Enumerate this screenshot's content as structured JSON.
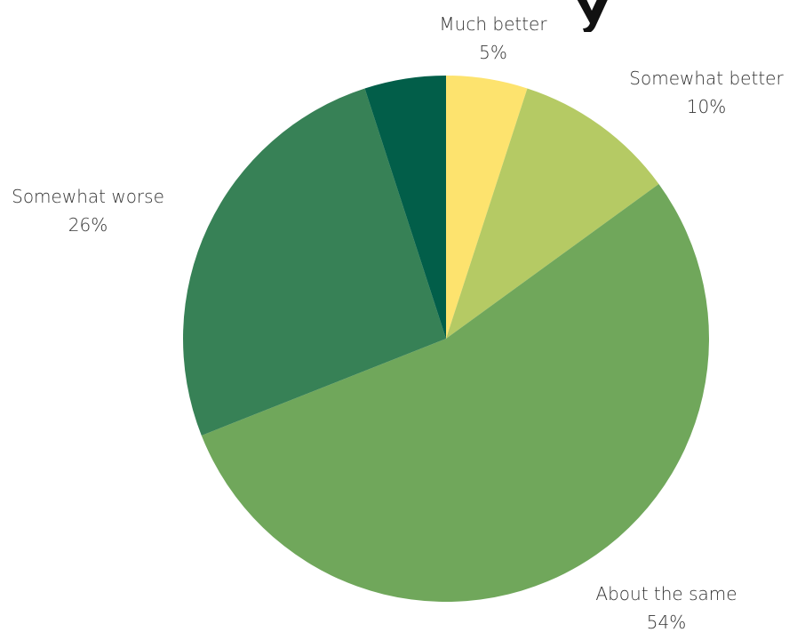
{
  "chart_data": {
    "type": "pie",
    "start_angle_deg": 0,
    "direction": "clockwise",
    "legend": "none",
    "slices": [
      {
        "label": "Much better",
        "value": 5,
        "value_label": "5%",
        "color": "#FDE36E"
      },
      {
        "label": "Somewhat better",
        "value": 10,
        "value_label": "10%",
        "color": "#B5CA64"
      },
      {
        "label": "About the same",
        "value": 54,
        "value_label": "54%",
        "color": "#70A75B"
      },
      {
        "label": "Somewhat worse",
        "value": 26,
        "value_label": "26%",
        "color": "#378156"
      },
      {
        "label": "",
        "value": 5,
        "value_label": "",
        "color": "#025E49"
      }
    ]
  }
}
